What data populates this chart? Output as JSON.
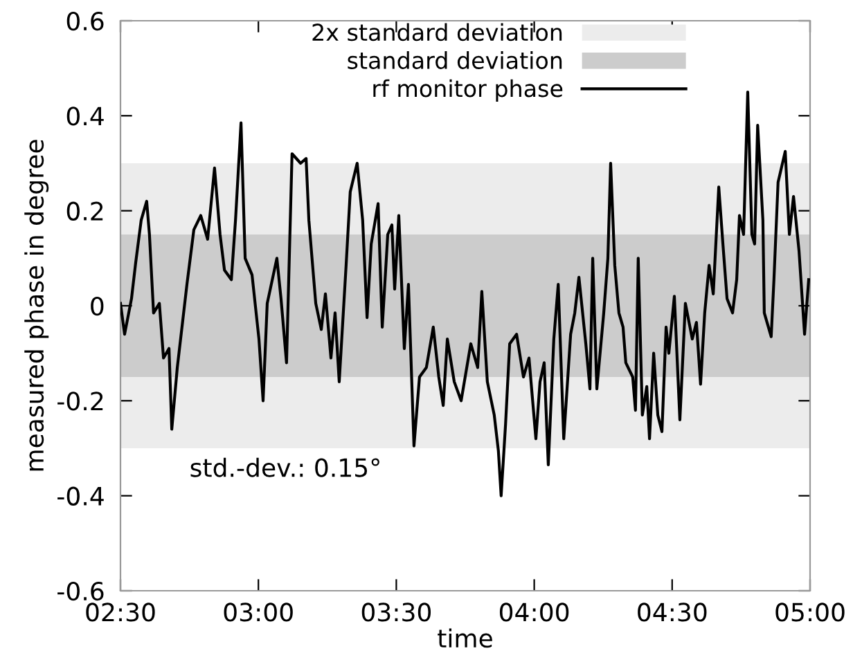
{
  "chart_data": {
    "type": "line",
    "xlabel": "time",
    "ylabel": "measured phase in degree",
    "xlim": [
      2.5,
      5.0
    ],
    "ylim": [
      -0.6,
      0.6
    ],
    "xticks": [
      {
        "value": 2.5,
        "label": "02:30"
      },
      {
        "value": 3.0,
        "label": "03:00"
      },
      {
        "value": 3.5,
        "label": "03:30"
      },
      {
        "value": 4.0,
        "label": "04:00"
      },
      {
        "value": 4.5,
        "label": "04:30"
      },
      {
        "value": 5.0,
        "label": "05:00"
      }
    ],
    "yticks": [
      -0.6,
      -0.4,
      -0.2,
      0,
      0.2,
      0.4,
      0.6
    ],
    "bands": [
      {
        "axis": "y",
        "from": -0.3,
        "to": 0.3,
        "label": "2x standard deviation",
        "color": "#ececec"
      },
      {
        "axis": "y",
        "from": -0.15,
        "to": 0.15,
        "label": "standard deviation",
        "color": "#cccccc"
      }
    ],
    "series": [
      {
        "name": "rf monitor phase",
        "color": "#000000",
        "x": [
          2.5,
          2.515,
          2.54,
          2.555,
          2.575,
          2.595,
          2.605,
          2.62,
          2.641,
          2.656,
          2.676,
          2.686,
          2.706,
          2.741,
          2.766,
          2.791,
          2.816,
          2.841,
          2.861,
          2.877,
          2.902,
          2.917,
          2.937,
          2.952,
          2.977,
          3.002,
          3.017,
          3.032,
          3.067,
          3.082,
          3.102,
          3.122,
          3.153,
          3.173,
          3.183,
          3.208,
          3.228,
          3.243,
          3.263,
          3.278,
          3.293,
          3.318,
          3.333,
          3.358,
          3.378,
          3.394,
          3.409,
          3.434,
          3.449,
          3.469,
          3.484,
          3.494,
          3.509,
          3.529,
          3.544,
          3.564,
          3.584,
          3.609,
          3.634,
          3.654,
          3.67,
          3.685,
          3.71,
          3.735,
          3.77,
          3.795,
          3.81,
          3.83,
          3.855,
          3.87,
          3.88,
          3.896,
          3.911,
          3.936,
          3.961,
          3.981,
          4.006,
          4.021,
          4.036,
          4.051,
          4.071,
          4.087,
          4.107,
          4.132,
          4.147,
          4.162,
          4.187,
          4.202,
          4.212,
          4.227,
          4.252,
          4.267,
          4.277,
          4.292,
          4.307,
          4.322,
          4.332,
          4.357,
          4.367,
          4.377,
          4.392,
          4.408,
          4.418,
          4.433,
          4.448,
          4.463,
          4.478,
          4.488,
          4.508,
          4.528,
          4.548,
          4.573,
          4.588,
          4.603,
          4.618,
          4.634,
          4.649,
          4.669,
          4.684,
          4.699,
          4.719,
          4.734,
          4.744,
          4.759,
          4.774,
          4.789,
          4.799,
          4.81,
          4.829,
          4.834,
          4.859,
          4.869,
          4.884,
          4.91,
          4.925,
          4.94,
          4.96,
          4.98,
          4.995
        ],
        "values": [
          0.005,
          -0.06,
          0.015,
          0.09,
          0.18,
          0.22,
          0.15,
          -0.015,
          0.005,
          -0.11,
          -0.09,
          -0.26,
          -0.13,
          0.045,
          0.16,
          0.19,
          0.14,
          0.29,
          0.15,
          0.075,
          0.055,
          0.18,
          0.385,
          0.1,
          0.065,
          -0.07,
          -0.2,
          0.005,
          0.1,
          0.015,
          -0.12,
          0.32,
          0.3,
          0.31,
          0.18,
          0.005,
          -0.05,
          0.025,
          -0.11,
          -0.015,
          -0.16,
          0.085,
          0.24,
          0.3,
          0.18,
          -0.025,
          0.13,
          0.215,
          -0.045,
          0.15,
          0.17,
          0.035,
          0.19,
          -0.09,
          0.045,
          -0.295,
          -0.15,
          -0.13,
          -0.045,
          -0.15,
          -0.21,
          -0.07,
          -0.16,
          -0.2,
          -0.08,
          -0.13,
          0.03,
          -0.16,
          -0.23,
          -0.305,
          -0.4,
          -0.25,
          -0.08,
          -0.06,
          -0.15,
          -0.11,
          -0.28,
          -0.16,
          -0.12,
          -0.335,
          -0.07,
          0.045,
          -0.28,
          -0.06,
          -0.015,
          0.06,
          -0.08,
          -0.175,
          0.1,
          -0.175,
          -0.015,
          0.1,
          0.3,
          0.085,
          -0.015,
          -0.045,
          -0.12,
          -0.15,
          -0.22,
          0.1,
          -0.23,
          -0.17,
          -0.28,
          -0.1,
          -0.23,
          -0.265,
          -0.045,
          -0.1,
          0.02,
          -0.24,
          0.005,
          -0.07,
          -0.035,
          -0.165,
          -0.015,
          0.085,
          0.025,
          0.25,
          0.13,
          0.015,
          -0.015,
          0.055,
          0.19,
          0.15,
          0.45,
          0.15,
          0.13,
          0.38,
          0.18,
          -0.015,
          -0.065,
          0.055,
          0.26,
          0.325,
          0.15,
          0.23,
          0.115,
          -0.06,
          0.055
        ]
      }
    ],
    "annotations": [
      "std.-dev.: 0.15°"
    ],
    "legend": "top right",
    "grid": false,
    "marker": "none",
    "line_style": "solid"
  }
}
